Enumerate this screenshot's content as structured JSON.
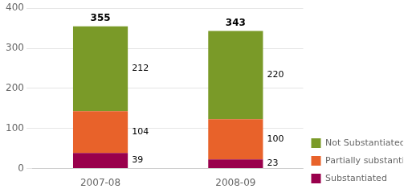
{
  "chart_data": {
    "type": "bar",
    "stacked": true,
    "categories": [
      "2007-08",
      "2008-09"
    ],
    "series": [
      {
        "name": "Substantiated",
        "color": "#99004C",
        "values": [
          39,
          23
        ]
      },
      {
        "name": "Partially substantiated",
        "color": "#E8622A",
        "values": [
          104,
          100
        ]
      },
      {
        "name": "Not Substantiated",
        "color": "#7A9A28",
        "values": [
          212,
          220
        ]
      }
    ],
    "totals": [
      355,
      343
    ],
    "ylim": [
      0,
      400
    ],
    "yticks": [
      0,
      100,
      200,
      300,
      400
    ],
    "grid": true,
    "legend": "lower right",
    "data_labels": true
  }
}
